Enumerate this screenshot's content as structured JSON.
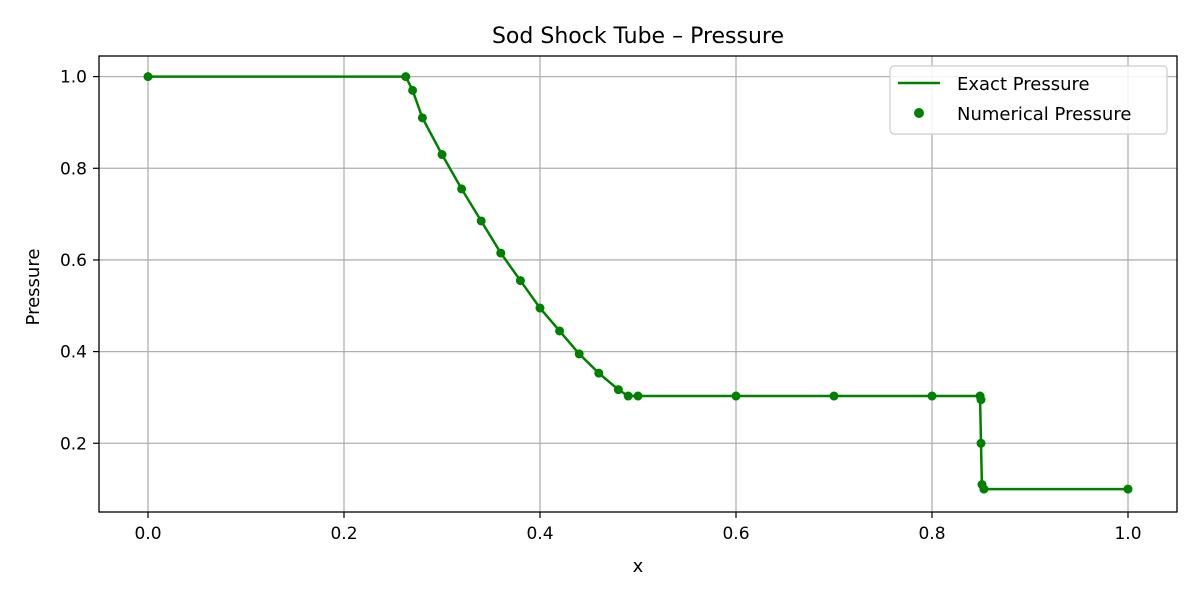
{
  "chart_data": {
    "type": "line",
    "title": "Sod Shock Tube – Pressure",
    "xlabel": "x",
    "ylabel": "Pressure",
    "xlim": [
      -0.05,
      1.05
    ],
    "ylim": [
      0.05,
      1.045
    ],
    "x_ticks": [
      0.0,
      0.2,
      0.4,
      0.6,
      0.8,
      1.0
    ],
    "x_tick_labels": [
      "0.0",
      "0.2",
      "0.4",
      "0.6",
      "0.8",
      "1.0"
    ],
    "y_ticks": [
      0.2,
      0.4,
      0.6,
      0.8,
      1.0
    ],
    "y_tick_labels": [
      "0.2",
      "0.4",
      "0.6",
      "0.8",
      "1.0"
    ],
    "grid": true,
    "legend_position": "top-right",
    "color": "#008000",
    "series": [
      {
        "name": "Exact Pressure",
        "kind": "line",
        "x": [
          0.0,
          0.263,
          0.27,
          0.28,
          0.3,
          0.32,
          0.34,
          0.36,
          0.38,
          0.4,
          0.42,
          0.44,
          0.46,
          0.48,
          0.49,
          0.5,
          0.6,
          0.7,
          0.8,
          0.849,
          0.85,
          0.851,
          1.0
        ],
        "y": [
          1.0,
          1.0,
          0.97,
          0.91,
          0.83,
          0.755,
          0.685,
          0.615,
          0.555,
          0.495,
          0.445,
          0.395,
          0.353,
          0.317,
          0.303,
          0.303,
          0.303,
          0.303,
          0.303,
          0.303,
          0.2,
          0.1,
          0.1
        ]
      },
      {
        "name": "Numerical Pressure",
        "kind": "scatter",
        "x": [
          0.0,
          0.263,
          0.27,
          0.28,
          0.3,
          0.32,
          0.34,
          0.36,
          0.38,
          0.4,
          0.42,
          0.44,
          0.46,
          0.48,
          0.49,
          0.5,
          0.6,
          0.7,
          0.8,
          0.849,
          0.85,
          0.85,
          0.851,
          0.853,
          1.0
        ],
        "y": [
          1.0,
          1.0,
          0.97,
          0.91,
          0.83,
          0.755,
          0.685,
          0.615,
          0.555,
          0.495,
          0.445,
          0.395,
          0.353,
          0.317,
          0.303,
          0.303,
          0.303,
          0.303,
          0.303,
          0.303,
          0.295,
          0.2,
          0.11,
          0.1,
          0.1
        ]
      }
    ]
  }
}
